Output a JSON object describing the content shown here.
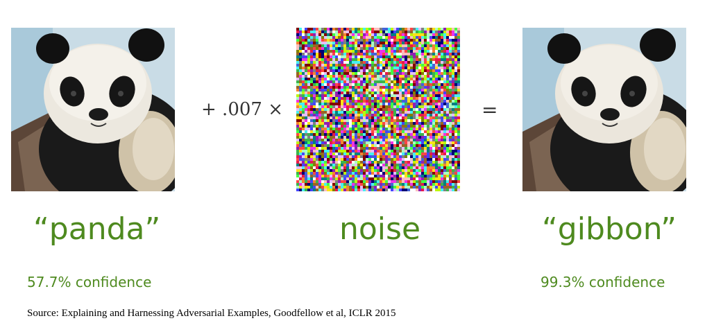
{
  "figure": {
    "input_label": "“panda”",
    "input_confidence": "57.7% confidence",
    "operator_multiply": "+ .007 ×",
    "noise_label": "noise",
    "operator_equals": "=",
    "output_label": "“gibbon”",
    "output_confidence": "99.3% confidence"
  },
  "source": "Source: Explaining and Harnessing Adversarial Examples, Goodfellow et al, ICLR 2015",
  "colors": {
    "label_green": "#4e8a1f",
    "operator_gray": "#333333"
  },
  "images": {
    "input": "panda-photo",
    "noise": "adversarial-noise-pattern",
    "output": "panda-photo-perturbed"
  }
}
